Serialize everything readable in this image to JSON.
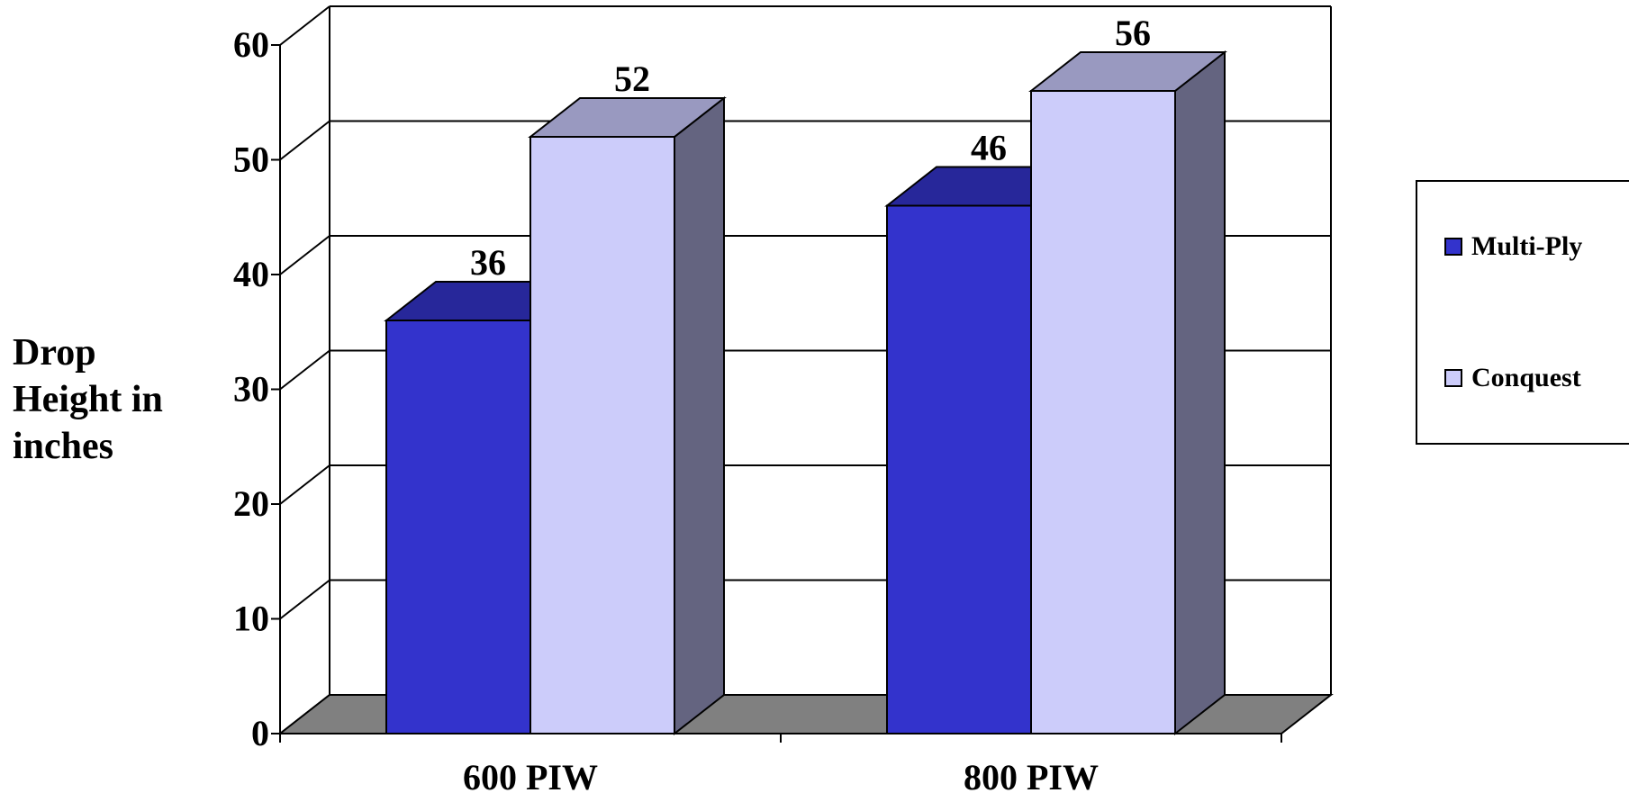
{
  "chart_data": {
    "type": "bar",
    "categories": [
      "600 PIW",
      "800 PIW"
    ],
    "series": [
      {
        "name": "Multi-Ply",
        "values": [
          36,
          46
        ],
        "color": "#3333cc",
        "top_color": "#27279a"
      },
      {
        "name": "Conquest",
        "values": [
          52,
          56
        ],
        "color": "#ccccfa",
        "top_color": "#9999c0",
        "side_color": "#646480"
      }
    ],
    "ylabel": "Drop Height in inches",
    "xlabel": "",
    "title": "",
    "ylim": [
      0,
      60
    ],
    "yticks": [
      0,
      10,
      20,
      30,
      40,
      50,
      60
    ],
    "grid": true,
    "legend_position": "right",
    "floor_color": "#808080"
  }
}
